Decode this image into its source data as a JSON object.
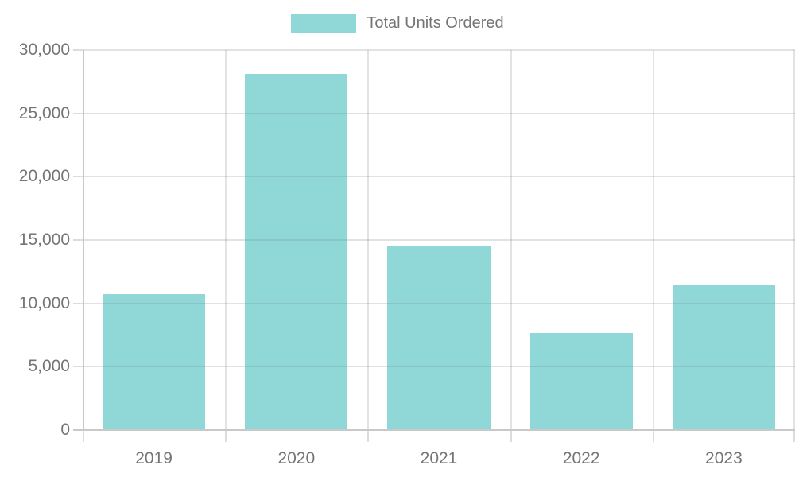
{
  "chart_data": {
    "type": "bar",
    "categories": [
      "2019",
      "2020",
      "2021",
      "2022",
      "2023"
    ],
    "series": [
      {
        "name": "Total Units Ordered",
        "values": [
          10750,
          28100,
          14500,
          7650,
          11450
        ]
      }
    ],
    "xlabel": "",
    "ylabel": "",
    "ylim": [
      0,
      30000
    ],
    "ytick_step": 5000,
    "ytick_labels": [
      "0",
      "5,000",
      "10,000",
      "15,000",
      "20,000",
      "25,000",
      "30,000"
    ],
    "grid": true,
    "legend_position": "top",
    "colors": {
      "bar": "#90d8d8",
      "text": "#757575",
      "gridline": "rgba(120,120,120,0.21)",
      "gridline_vertical": "#e3e3e3",
      "axis_line": "#c9c9c9",
      "tick": "#dcdcdc",
      "background": "#ffffff"
    }
  }
}
